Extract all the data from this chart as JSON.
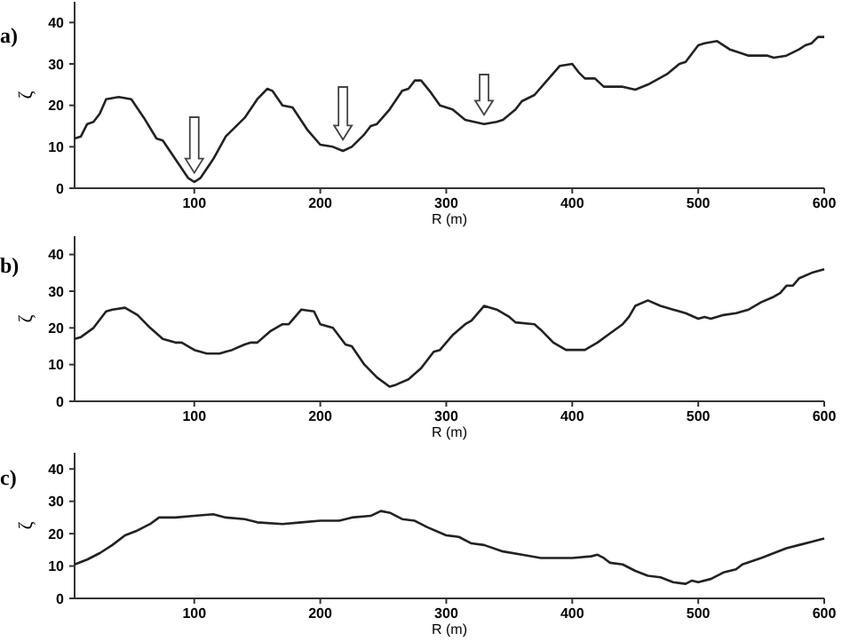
{
  "chart_data": [
    {
      "type": "line",
      "title": "a)",
      "xlabel": "R (m)",
      "ylabel": "ζ",
      "xlim": [
        5,
        600
      ],
      "ylim": [
        0,
        45
      ],
      "xticks": [
        100,
        200,
        300,
        400,
        500,
        600
      ],
      "yticks": [
        0,
        10,
        20,
        30,
        40
      ],
      "grid": false,
      "series": [
        {
          "color": "#222222",
          "x": [
            5,
            10,
            15,
            20,
            25,
            30,
            40,
            50,
            60,
            70,
            75,
            85,
            95,
            100,
            105,
            115,
            125,
            130,
            140,
            150,
            158,
            162,
            170,
            178,
            190,
            200,
            210,
            218,
            225,
            235,
            240,
            245,
            255,
            265,
            270,
            275,
            280,
            288,
            295,
            305,
            315,
            330,
            340,
            345,
            355,
            360,
            370,
            380,
            390,
            400,
            405,
            410,
            418,
            425,
            440,
            450,
            460,
            475,
            485,
            490,
            500,
            505,
            515,
            525,
            530,
            540,
            555,
            560,
            570,
            580,
            585,
            590,
            595,
            600
          ],
          "values": [
            12,
            12.5,
            15.5,
            16,
            18,
            21.5,
            22,
            21.5,
            17,
            12,
            11.5,
            7,
            2.5,
            1.5,
            2.5,
            7,
            12.5,
            14,
            17,
            21.5,
            24,
            23.5,
            20,
            19.5,
            14,
            10.5,
            10,
            9,
            10,
            13,
            15,
            15.5,
            19,
            23.5,
            24,
            26,
            26,
            23,
            20,
            19,
            16.5,
            15.5,
            16,
            16.5,
            19,
            21,
            22.5,
            26,
            29.5,
            30,
            28,
            26.5,
            26.5,
            24.5,
            24.5,
            23.8,
            25,
            27.5,
            30,
            30.5,
            34.5,
            35,
            35.5,
            33.5,
            33,
            32,
            32,
            31.5,
            32,
            33.5,
            34.5,
            35,
            36.5,
            36.5
          ]
        }
      ]
    },
    {
      "type": "line",
      "title": "b)",
      "xlabel": "R (m)",
      "ylabel": "ζ",
      "xlim": [
        5,
        600
      ],
      "ylim": [
        0,
        45
      ],
      "xticks": [
        100,
        200,
        300,
        400,
        500,
        600
      ],
      "yticks": [
        0,
        10,
        20,
        30,
        40
      ],
      "grid": false,
      "series": [
        {
          "color": "#222222",
          "x": [
            5,
            10,
            20,
            30,
            35,
            45,
            55,
            65,
            75,
            85,
            90,
            100,
            110,
            120,
            130,
            140,
            145,
            150,
            160,
            170,
            175,
            185,
            195,
            200,
            210,
            220,
            225,
            235,
            245,
            255,
            260,
            270,
            280,
            290,
            295,
            305,
            315,
            320,
            330,
            340,
            350,
            355,
            370,
            375,
            385,
            395,
            410,
            420,
            430,
            440,
            445,
            450,
            460,
            470,
            480,
            490,
            500,
            505,
            510,
            520,
            530,
            540,
            550,
            560,
            565,
            570,
            575,
            580,
            590,
            600
          ],
          "values": [
            17,
            17.5,
            20,
            24.5,
            25,
            25.5,
            23.5,
            20,
            17,
            16,
            16,
            14,
            13,
            13,
            14,
            15.5,
            16,
            16,
            19,
            21,
            21,
            25,
            24.5,
            21,
            20,
            15.5,
            15,
            10,
            6.5,
            4,
            4.5,
            6,
            9,
            13.5,
            14,
            18,
            21,
            22,
            26,
            25,
            23,
            21.5,
            21,
            19.5,
            16,
            14,
            14,
            16,
            18.5,
            21,
            23,
            26,
            27.5,
            26,
            25,
            24,
            22.5,
            23,
            22.5,
            23.5,
            24,
            25,
            27,
            28.5,
            29.5,
            31.5,
            31.5,
            33.5,
            35,
            36
          ]
        }
      ]
    },
    {
      "type": "line",
      "title": "c)",
      "xlabel": "R (m)",
      "ylabel": "ζ",
      "xlim": [
        5,
        600
      ],
      "ylim": [
        0,
        45
      ],
      "xticks": [
        100,
        200,
        300,
        400,
        500,
        600
      ],
      "yticks": [
        0,
        10,
        20,
        30,
        40
      ],
      "grid": false,
      "series": [
        {
          "color": "#222222",
          "x": [
            5,
            15,
            25,
            35,
            45,
            55,
            65,
            72,
            85,
            100,
            115,
            125,
            140,
            150,
            170,
            185,
            200,
            215,
            225,
            240,
            248,
            255,
            265,
            275,
            285,
            300,
            310,
            320,
            330,
            345,
            360,
            375,
            400,
            415,
            420,
            425,
            430,
            440,
            450,
            460,
            470,
            480,
            490,
            495,
            500,
            510,
            520,
            530,
            535,
            550,
            560,
            570,
            580,
            590,
            600
          ],
          "values": [
            10.5,
            12,
            14,
            16.5,
            19.5,
            21,
            23,
            25,
            25,
            25.5,
            26,
            25,
            24.5,
            23.5,
            23,
            23.5,
            24,
            24,
            25,
            25.5,
            27,
            26.5,
            24.5,
            24,
            22,
            19.5,
            19,
            17,
            16.5,
            14.5,
            13.5,
            12.5,
            12.5,
            13,
            13.5,
            12.5,
            11,
            10.5,
            8.5,
            7,
            6.5,
            5,
            4.5,
            5.5,
            5,
            6,
            8,
            9,
            10.5,
            12.5,
            14,
            15.5,
            16.5,
            17.5,
            18.5
          ]
        }
      ]
    }
  ]
}
